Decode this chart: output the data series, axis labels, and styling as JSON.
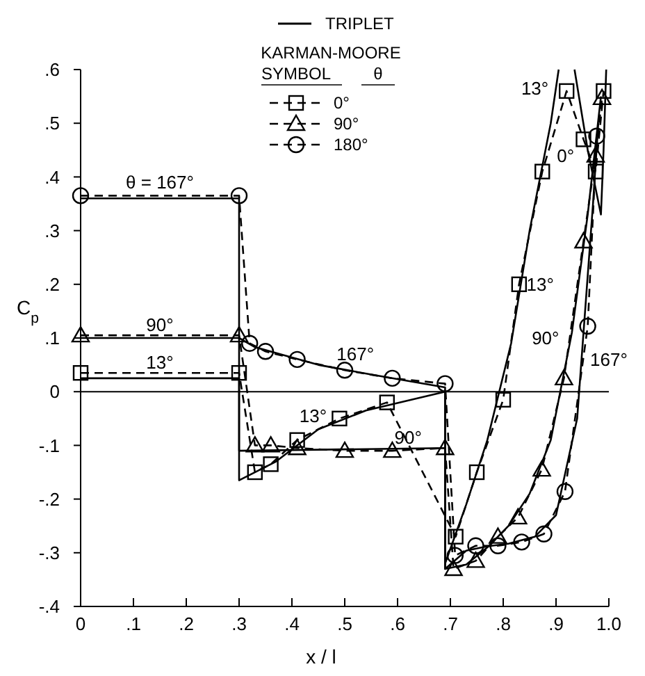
{
  "chart_data": {
    "type": "line",
    "xlabel": "x / l",
    "ylabel": "C$_{p}$",
    "legend_title": "KARMAN-MOORE",
    "legend": "top",
    "xlim": [
      0,
      1.0
    ],
    "xticks": [
      0,
      {
        "value": 0.1,
        "label": ".1"
      },
      {
        "value": 0.2,
        "label": ".2"
      },
      {
        "value": 0.3,
        "label": ".3"
      },
      {
        "value": 0.4,
        "label": ".4"
      },
      {
        "value": 0.5,
        "label": ".5"
      },
      {
        "value": 0.6,
        "label": ".6"
      },
      {
        "value": 0.7,
        "label": ".7"
      },
      {
        "value": 0.8,
        "label": ".8"
      },
      {
        "value": 0.9,
        "label": ".9"
      },
      {
        "value": 1.0,
        "label": "1.0"
      }
    ],
    "ylim": [
      -0.4,
      0.6
    ],
    "yticks": [
      {
        "value": -0.4,
        "label": "-.4"
      },
      {
        "value": -0.3,
        "label": "-.3"
      },
      {
        "value": -0.2,
        "label": "-.2"
      },
      {
        "value": -0.1,
        "label": "-.1"
      },
      0,
      {
        "value": 0.1,
        "label": ".1"
      },
      {
        "value": 0.2,
        "label": ".2"
      },
      {
        "value": 0.3,
        "label": ".3"
      },
      {
        "value": 0.4,
        "label": ".4"
      },
      {
        "value": 0.5,
        "label": ".5"
      },
      {
        "value": 0.6,
        "label": ".6"
      }
    ],
    "ref_lines": [
      {
        "axis": "y",
        "value": 0,
        "color": "#000000"
      }
    ],
    "series": [
      {
        "name": "TRIPLET",
        "type": "line",
        "color": "#000000",
        "marker": "none",
        "line_style": "solid",
        "x": [
          0,
          0.3,
          0.3,
          0.33,
          0.45,
          0.55,
          0.69,
          0.69,
          0.73,
          0.77,
          0.81,
          0.86,
          0.9,
          0.94,
          0.97,
          0.98
        ],
        "values": [
          0.36,
          0.36,
          0.1,
          0.083,
          0.05,
          0.032,
          0.008,
          -0.33,
          -0.296,
          -0.288,
          -0.283,
          -0.27,
          -0.23,
          -0.05,
          0.35,
          0.5
        ]
      },
      {
        "type": "line",
        "color": "#000000",
        "marker": "none",
        "line_style": "solid",
        "x": [
          0,
          0.3,
          0.3,
          0.45,
          0.69,
          0.69,
          0.73,
          0.77,
          0.81,
          0.85,
          0.89,
          0.93,
          0.96,
          0.985
        ],
        "values": [
          0.1,
          0.1,
          -0.11,
          -0.108,
          -0.105,
          -0.33,
          -0.322,
          -0.29,
          -0.25,
          -0.19,
          -0.09,
          0.11,
          0.33,
          0.55
        ]
      },
      {
        "type": "line",
        "color": "#000000",
        "marker": "none",
        "line_style": "solid",
        "x": [
          0,
          0.3,
          0.3,
          0.37,
          0.45,
          0.54,
          0.69,
          0.69,
          0.73,
          0.77,
          0.815,
          0.85,
          0.89,
          0.905
        ],
        "values": [
          0.025,
          0.025,
          -0.165,
          -0.13,
          -0.07,
          -0.035,
          0.0,
          -0.32,
          -0.21,
          -0.09,
          0.09,
          0.3,
          0.5,
          0.6
        ]
      },
      {
        "type": "line",
        "color": "#000000",
        "marker": "none",
        "line_style": "solid",
        "x": [
          0.935,
          0.96,
          0.985,
          0.99,
          0.995
        ],
        "values": [
          0.6,
          0.45,
          0.33,
          0.45,
          0.6
        ]
      },
      {
        "name": "0°",
        "type": "line",
        "color": "#000000",
        "marker": "square",
        "line_style": "dashed",
        "x": [
          0,
          0.3,
          0.33,
          0.36,
          0.41,
          0.49,
          0.58,
          0.71,
          0.75,
          0.8,
          0.83,
          0.874,
          0.92,
          0.952,
          0.975,
          0.99
        ],
        "values": [
          0.035,
          0.035,
          -0.15,
          -0.135,
          -0.09,
          -0.05,
          -0.02,
          -0.27,
          -0.15,
          -0.015,
          0.2,
          0.41,
          0.56,
          0.47,
          0.41,
          0.56
        ]
      },
      {
        "name": "90°",
        "type": "line",
        "color": "#000000",
        "marker": "triangle",
        "line_style": "dashed",
        "x": [
          0,
          0.3,
          0.33,
          0.36,
          0.41,
          0.5,
          0.59,
          0.69,
          0.706,
          0.748,
          0.79,
          0.828,
          0.873,
          0.915,
          0.952,
          0.975,
          0.987
        ],
        "values": [
          0.105,
          0.105,
          -0.1,
          -0.1,
          -0.105,
          -0.11,
          -0.11,
          -0.105,
          -0.33,
          -0.315,
          -0.27,
          -0.234,
          -0.145,
          0.025,
          0.28,
          0.44,
          0.547
        ]
      },
      {
        "name": "180°",
        "type": "line",
        "color": "#000000",
        "marker": "circle",
        "line_style": "dashed",
        "x": [
          0,
          0.3,
          0.32,
          0.35,
          0.41,
          0.5,
          0.59,
          0.69,
          0.709,
          0.748,
          0.79,
          0.835,
          0.877,
          0.917,
          0.96,
          0.977
        ],
        "values": [
          0.365,
          0.365,
          0.09,
          0.075,
          0.06,
          0.04,
          0.025,
          0.015,
          -0.305,
          -0.287,
          -0.287,
          -0.28,
          -0.265,
          -0.186,
          0.122,
          0.476
        ]
      }
    ],
    "annotations": [
      "SYMBOL",
      "θ",
      "θ = 167°",
      "90°",
      "13°",
      "167°",
      "13°",
      "90°",
      "13°",
      "0°",
      "13°",
      "90°",
      "167°"
    ]
  }
}
